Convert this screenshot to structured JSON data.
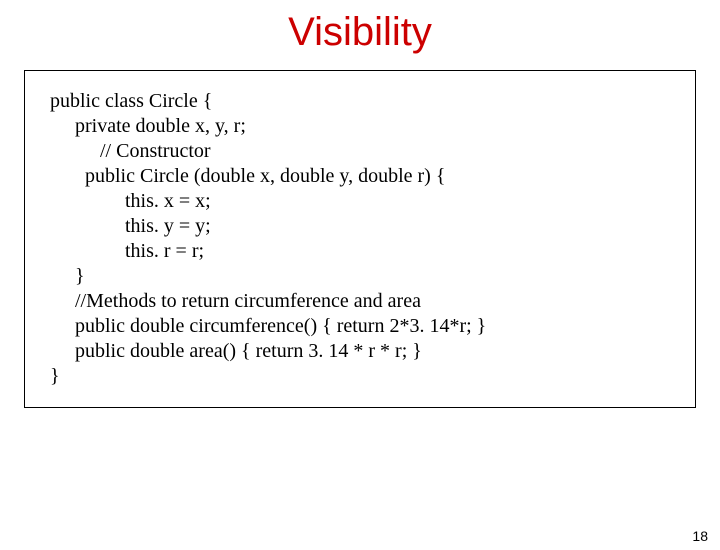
{
  "title": "Visibility",
  "title_color": "#cc0000",
  "title_fontsize": 40,
  "code_border_color": "#000000",
  "code": {
    "l0": "   public class Circle {",
    "l1": "        private double x, y, r;",
    "l2": "",
    "l3": "             // Constructor",
    "l4": "          public Circle (double x, double y, double r) {",
    "l5": "                  this. x = x;",
    "l6": "                  this. y = y;",
    "l7": "                  this. r = r;",
    "l8": "        }",
    "l9": "        //Methods to return circumference and area",
    "l10": "        public double circumference() { return 2*3. 14*r; }",
    "l11": "        public double area() { return 3. 14 * r * r; }",
    "l12": "   }"
  },
  "page_number": "18"
}
